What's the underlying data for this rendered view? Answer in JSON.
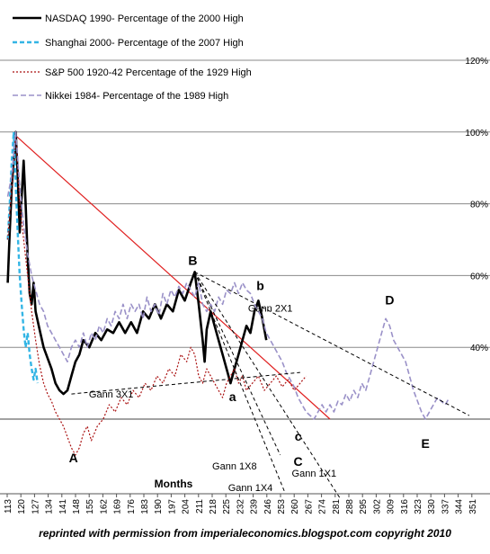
{
  "chart_data": {
    "type": "line",
    "xlabel": "Months",
    "x_ticks": [
      "113",
      "120",
      "127",
      "134",
      "141",
      "148",
      "155",
      "162",
      "169",
      "176",
      "183",
      "190",
      "197",
      "204",
      "211",
      "218",
      "225",
      "232",
      "239",
      "246",
      "253",
      "260",
      "267",
      "274",
      "281",
      "288",
      "295",
      "302",
      "309",
      "316",
      "323",
      "330",
      "337",
      "344",
      "351"
    ],
    "y_ticks": [
      {
        "label": "120%",
        "value": 120
      },
      {
        "label": "100%",
        "value": 100
      },
      {
        "label": "80%",
        "value": 80
      },
      {
        "label": "60%",
        "value": 60
      },
      {
        "label": "40%",
        "value": 40
      },
      {
        "label": "",
        "value": 20
      }
    ],
    "ylim": [
      20,
      120
    ],
    "xlim": [
      110,
      355
    ],
    "grid": true,
    "legend_position": "top-left",
    "series": [
      {
        "name": "NASDAQ 1990-  Percentage of the 2000  High",
        "color": "#000000",
        "dash": "",
        "width": 2.6,
        "points": [
          [
            113,
            58
          ],
          [
            114,
            72
          ],
          [
            115,
            85
          ],
          [
            116,
            92
          ],
          [
            117,
            100
          ],
          [
            118,
            88
          ],
          [
            119,
            72
          ],
          [
            120,
            82
          ],
          [
            121,
            92
          ],
          [
            122,
            80
          ],
          [
            123,
            65
          ],
          [
            124,
            55
          ],
          [
            125,
            52
          ],
          [
            126,
            58
          ],
          [
            127,
            50
          ],
          [
            129,
            45
          ],
          [
            131,
            40
          ],
          [
            133,
            37
          ],
          [
            135,
            34
          ],
          [
            137,
            30
          ],
          [
            139,
            28
          ],
          [
            141,
            27
          ],
          [
            143,
            28
          ],
          [
            145,
            32
          ],
          [
            147,
            36
          ],
          [
            149,
            38
          ],
          [
            151,
            42
          ],
          [
            154,
            40
          ],
          [
            157,
            44
          ],
          [
            160,
            42
          ],
          [
            163,
            45
          ],
          [
            166,
            44
          ],
          [
            169,
            47
          ],
          [
            172,
            44
          ],
          [
            175,
            47
          ],
          [
            178,
            44
          ],
          [
            181,
            50
          ],
          [
            184,
            48
          ],
          [
            187,
            52
          ],
          [
            190,
            48
          ],
          [
            193,
            52
          ],
          [
            196,
            50
          ],
          [
            199,
            56
          ],
          [
            202,
            53
          ],
          [
            205,
            58
          ],
          [
            207,
            61
          ],
          [
            209,
            52
          ],
          [
            211,
            42
          ],
          [
            212,
            36
          ],
          [
            213,
            45
          ],
          [
            215,
            50
          ],
          [
            217,
            46
          ],
          [
            219,
            42
          ],
          [
            221,
            38
          ],
          [
            223,
            34
          ],
          [
            225,
            30
          ],
          [
            227,
            34
          ],
          [
            229,
            38
          ],
          [
            231,
            42
          ],
          [
            233,
            46
          ],
          [
            235,
            44
          ],
          [
            237,
            50
          ],
          [
            239,
            53
          ],
          [
            241,
            48
          ],
          [
            243,
            42
          ]
        ]
      },
      {
        "name": "Shanghai 2000-  Percentage of the 2007  High",
        "color": "#33b5e5",
        "dash": "5,3",
        "width": 2.4,
        "points": [
          [
            113,
            70
          ],
          [
            114,
            80
          ],
          [
            115,
            92
          ],
          [
            116,
            100
          ],
          [
            117,
            85
          ],
          [
            118,
            72
          ],
          [
            119,
            60
          ],
          [
            120,
            52
          ],
          [
            121,
            45
          ],
          [
            122,
            40
          ],
          [
            123,
            44
          ],
          [
            124,
            38
          ],
          [
            125,
            34
          ],
          [
            126,
            31
          ],
          [
            127,
            34
          ],
          [
            128,
            30
          ]
        ]
      },
      {
        "name": "S&P 500 1920-42 Percentage of the 1929 High",
        "color": "#aa1111",
        "dash": "2,2",
        "width": 1.2,
        "points": [
          [
            113,
            70
          ],
          [
            115,
            85
          ],
          [
            117,
            100
          ],
          [
            119,
            80
          ],
          [
            121,
            70
          ],
          [
            123,
            60
          ],
          [
            125,
            50
          ],
          [
            127,
            42
          ],
          [
            129,
            35
          ],
          [
            131,
            30
          ],
          [
            133,
            27
          ],
          [
            135,
            25
          ],
          [
            137,
            22
          ],
          [
            139,
            20
          ],
          [
            141,
            18
          ],
          [
            143,
            15
          ],
          [
            145,
            12
          ],
          [
            147,
            10
          ],
          [
            149,
            12
          ],
          [
            151,
            16
          ],
          [
            153,
            18
          ],
          [
            155,
            14
          ],
          [
            158,
            18
          ],
          [
            161,
            20
          ],
          [
            164,
            24
          ],
          [
            167,
            22
          ],
          [
            170,
            26
          ],
          [
            173,
            24
          ],
          [
            176,
            28
          ],
          [
            179,
            26
          ],
          [
            182,
            30
          ],
          [
            185,
            28
          ],
          [
            188,
            32
          ],
          [
            191,
            30
          ],
          [
            194,
            34
          ],
          [
            197,
            32
          ],
          [
            200,
            38
          ],
          [
            203,
            36
          ],
          [
            205,
            40
          ],
          [
            207,
            38
          ],
          [
            209,
            32
          ],
          [
            211,
            30
          ],
          [
            213,
            34
          ],
          [
            215,
            32
          ],
          [
            217,
            30
          ],
          [
            219,
            28
          ],
          [
            221,
            26
          ],
          [
            223,
            30
          ],
          [
            225,
            32
          ],
          [
            227,
            34
          ],
          [
            229,
            30
          ],
          [
            231,
            32
          ],
          [
            233,
            28
          ],
          [
            236,
            30
          ],
          [
            239,
            32
          ],
          [
            242,
            28
          ],
          [
            245,
            30
          ],
          [
            248,
            32
          ],
          [
            251,
            29
          ],
          [
            254,
            31
          ],
          [
            257,
            28
          ],
          [
            260,
            30
          ],
          [
            263,
            32
          ]
        ]
      },
      {
        "name": "Nikkei 1984- Percentage of the 1989  High",
        "color": "#9a91c8",
        "dash": "6,3",
        "width": 1.6,
        "points": [
          [
            113,
            82
          ],
          [
            115,
            88
          ],
          [
            117,
            100
          ],
          [
            119,
            85
          ],
          [
            121,
            74
          ],
          [
            123,
            66
          ],
          [
            125,
            60
          ],
          [
            127,
            56
          ],
          [
            129,
            52
          ],
          [
            131,
            50
          ],
          [
            133,
            46
          ],
          [
            135,
            44
          ],
          [
            137,
            42
          ],
          [
            139,
            40
          ],
          [
            141,
            38
          ],
          [
            143,
            36
          ],
          [
            145,
            40
          ],
          [
            147,
            42
          ],
          [
            149,
            40
          ],
          [
            151,
            44
          ],
          [
            153,
            40
          ],
          [
            155,
            44
          ],
          [
            157,
            42
          ],
          [
            159,
            46
          ],
          [
            161,
            44
          ],
          [
            163,
            48
          ],
          [
            165,
            46
          ],
          [
            167,
            50
          ],
          [
            169,
            48
          ],
          [
            171,
            52
          ],
          [
            173,
            48
          ],
          [
            175,
            52
          ],
          [
            177,
            50
          ],
          [
            179,
            52
          ],
          [
            181,
            48
          ],
          [
            183,
            54
          ],
          [
            185,
            50
          ],
          [
            187,
            52
          ],
          [
            189,
            49
          ],
          [
            191,
            55
          ],
          [
            193,
            52
          ],
          [
            195,
            56
          ],
          [
            197,
            54
          ],
          [
            199,
            57
          ],
          [
            201,
            55
          ],
          [
            203,
            58
          ],
          [
            205,
            56
          ],
          [
            207,
            54
          ],
          [
            209,
            58
          ],
          [
            211,
            52
          ],
          [
            213,
            50
          ],
          [
            215,
            52
          ],
          [
            217,
            50
          ],
          [
            219,
            54
          ],
          [
            221,
            52
          ],
          [
            223,
            56
          ],
          [
            225,
            55
          ],
          [
            227,
            58
          ],
          [
            229,
            55
          ],
          [
            231,
            58
          ],
          [
            233,
            56
          ],
          [
            235,
            55
          ],
          [
            237,
            52
          ],
          [
            239,
            50
          ],
          [
            241,
            48
          ],
          [
            243,
            44
          ],
          [
            245,
            42
          ],
          [
            247,
            40
          ],
          [
            249,
            38
          ],
          [
            251,
            36
          ],
          [
            253,
            33
          ],
          [
            255,
            31
          ],
          [
            257,
            29
          ],
          [
            259,
            26
          ],
          [
            261,
            24
          ],
          [
            263,
            22
          ],
          [
            265,
            21
          ],
          [
            267,
            20
          ],
          [
            269,
            22
          ],
          [
            271,
            24
          ],
          [
            273,
            22
          ],
          [
            275,
            24
          ],
          [
            277,
            22
          ],
          [
            279,
            25
          ],
          [
            281,
            24
          ],
          [
            283,
            27
          ],
          [
            285,
            25
          ],
          [
            287,
            28
          ],
          [
            289,
            26
          ],
          [
            291,
            30
          ],
          [
            293,
            28
          ],
          [
            295,
            32
          ],
          [
            297,
            36
          ],
          [
            299,
            40
          ],
          [
            301,
            44
          ],
          [
            303,
            48
          ],
          [
            305,
            46
          ],
          [
            307,
            42
          ],
          [
            309,
            40
          ],
          [
            311,
            38
          ],
          [
            313,
            36
          ],
          [
            315,
            32
          ],
          [
            317,
            28
          ],
          [
            319,
            25
          ],
          [
            321,
            22
          ],
          [
            323,
            20
          ],
          [
            325,
            22
          ],
          [
            327,
            24
          ],
          [
            329,
            26
          ],
          [
            331,
            25
          ],
          [
            333,
            24
          ],
          [
            335,
            26
          ]
        ]
      }
    ],
    "gann_lines": [
      {
        "label": "Gann 3X1",
        "color": "#000000",
        "from": [
          145,
          27
        ],
        "to": [
          260,
          33
        ],
        "label_at": [
          165,
          26
        ]
      },
      {
        "label": "Gann 2X1",
        "color": "#000000",
        "from": [
          207,
          61
        ],
        "to": [
          345,
          21
        ],
        "label_at": [
          245,
          50
        ]
      },
      {
        "label": "Gann 1X8",
        "color": "#000000",
        "from": [
          207,
          61
        ],
        "to": [
          250,
          10
        ],
        "label_at": [
          227,
          6
        ]
      },
      {
        "label": "Gann 1X4",
        "color": "#000000",
        "from": [
          207,
          61
        ],
        "to": [
          252,
          0
        ],
        "label_at": [
          235,
          0
        ]
      },
      {
        "label": "Gann 1X1",
        "color": "#000000",
        "from": [
          207,
          61
        ],
        "to": [
          280,
          -2
        ],
        "label_at": [
          267,
          4
        ]
      }
    ],
    "trend_line": {
      "color": "#e02020",
      "from": [
        117,
        99
      ],
      "to": [
        275,
        20
      ]
    },
    "point_labels": [
      {
        "text": "B",
        "x": 206,
        "y": 63
      },
      {
        "text": "b",
        "x": 240,
        "y": 56
      },
      {
        "text": "a",
        "x": 226,
        "y": 25
      },
      {
        "text": "A",
        "x": 146,
        "y": 8
      },
      {
        "text": "c",
        "x": 259,
        "y": 14
      },
      {
        "text": "C",
        "x": 259,
        "y": 7
      },
      {
        "text": "D",
        "x": 305,
        "y": 52
      },
      {
        "text": "E",
        "x": 323,
        "y": 12
      }
    ]
  },
  "caption": "reprinted with permission from  imperialeconomics.blogspot.com   copyright 2010"
}
